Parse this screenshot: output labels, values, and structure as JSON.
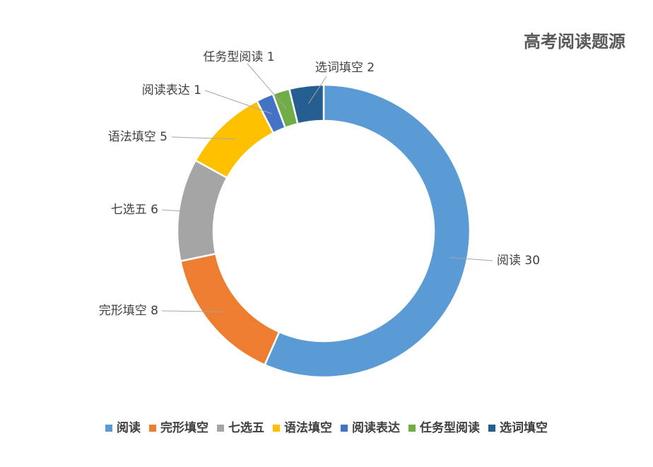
{
  "chart_data": {
    "type": "pie",
    "style": "donut",
    "title": "高考阅读题源",
    "categories": [
      "阅读",
      "完形填空",
      "七选五",
      "语法填空",
      "阅读表达",
      "任务型阅读",
      "选词填空"
    ],
    "values": [
      30,
      8,
      6,
      5,
      1,
      1,
      2
    ],
    "colors": [
      "#5b9bd5",
      "#ed7d31",
      "#a5a5a5",
      "#ffc000",
      "#4472c4",
      "#70ad47",
      "#255e91"
    ],
    "data_labels": [
      "阅读 30",
      "完形填空 8",
      "七选五 6",
      "语法填空 5",
      "阅读表达 1",
      "任务型阅读 1",
      "选词填空 2"
    ],
    "legend": {
      "position": "bottom",
      "entries": [
        "阅读",
        "完形填空",
        "七选五",
        "语法填空",
        "阅读表达",
        "任务型阅读",
        "选词填空"
      ]
    },
    "start_angle_deg": 0,
    "direction": "clockwise"
  }
}
